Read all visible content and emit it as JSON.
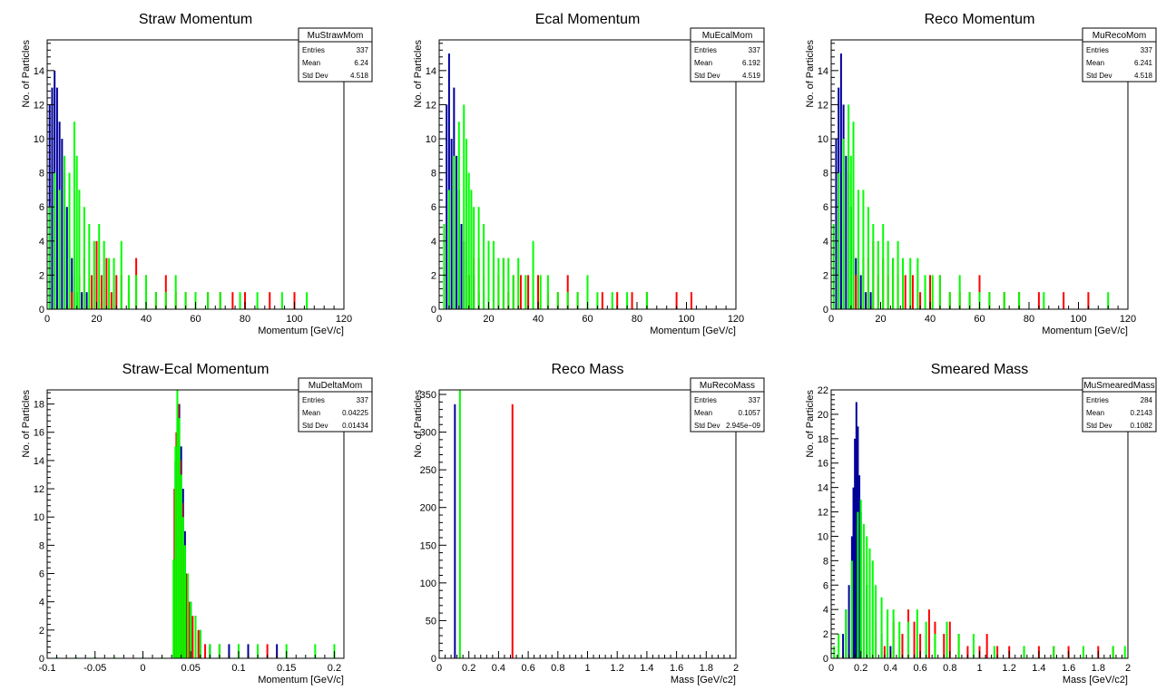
{
  "colors": {
    "blue": "#000099",
    "red": "#ff0000",
    "green": "#00ff00",
    "frame": "#000000"
  },
  "stats_labels": {
    "entries": "Entries",
    "mean": "Mean",
    "stddev": "Std Dev"
  },
  "chart_data": [
    {
      "type": "bar",
      "title": "Straw Momentum",
      "xlabel": "Momentum [GeV/c]",
      "ylabel": "No. of Particles",
      "xlim": [
        0,
        120
      ],
      "ylim": [
        0,
        15.8
      ],
      "xticks": [
        0,
        20,
        40,
        60,
        80,
        100,
        120
      ],
      "yticks": [
        0,
        2,
        4,
        6,
        8,
        10,
        12,
        14
      ],
      "xticklabels": [
        "0",
        "20",
        "40",
        "60",
        "80",
        "100",
        "120"
      ],
      "yticklabels": [
        "0",
        "2",
        "4",
        "6",
        "8",
        "10",
        "12",
        "14"
      ],
      "stats": {
        "name": "MuStrawMom",
        "entries": "337",
        "mean": "6.24",
        "stddev": "4.518"
      },
      "series": [
        {
          "color": "blue",
          "x": [
            1,
            2,
            3,
            4,
            5,
            6,
            7,
            8,
            9,
            10,
            11,
            12,
            14,
            16
          ],
          "values": [
            12,
            13,
            14,
            13,
            11,
            10,
            8,
            6,
            4,
            3,
            2,
            1,
            1,
            1
          ]
        },
        {
          "color": "red",
          "x": [
            10,
            13,
            15,
            18,
            20,
            22,
            24,
            26,
            28,
            30,
            33,
            36,
            40,
            44,
            48,
            52,
            56,
            60,
            65,
            70,
            75,
            80,
            90,
            100
          ],
          "values": [
            1,
            2,
            3,
            2,
            4,
            2,
            3,
            1,
            2,
            2,
            1,
            3,
            2,
            1,
            2,
            1,
            1,
            1,
            1,
            1,
            1,
            1,
            1,
            1
          ]
        },
        {
          "color": "green",
          "x": [
            1,
            3,
            5,
            7,
            9,
            11,
            12,
            13,
            15,
            17,
            19,
            21,
            23,
            25,
            27,
            30,
            33,
            36,
            40,
            44,
            48,
            52,
            56,
            60,
            65,
            70,
            78,
            85,
            95,
            105
          ],
          "values": [
            6,
            8,
            7,
            9,
            8,
            11,
            9,
            7,
            6,
            5,
            4,
            5,
            4,
            3,
            3,
            4,
            2,
            2,
            2,
            1,
            1,
            2,
            1,
            1,
            1,
            1,
            1,
            1,
            1,
            1
          ]
        }
      ]
    },
    {
      "type": "bar",
      "title": "Ecal Momentum",
      "xlabel": "Momentum [GeV/c]",
      "ylabel": "No. of Particles",
      "xlim": [
        0,
        120
      ],
      "ylim": [
        0,
        15.8
      ],
      "xticks": [
        0,
        20,
        40,
        60,
        80,
        100,
        120
      ],
      "yticks": [
        0,
        2,
        4,
        6,
        8,
        10,
        12,
        14
      ],
      "xticklabels": [
        "0",
        "20",
        "40",
        "60",
        "80",
        "100",
        "120"
      ],
      "yticklabels": [
        "0",
        "2",
        "4",
        "6",
        "8",
        "10",
        "12",
        "14"
      ],
      "stats": {
        "name": "MuEcalMom",
        "entries": "337",
        "mean": "6.192",
        "stddev": "4.519"
      },
      "series": [
        {
          "color": "blue",
          "x": [
            3,
            4,
            5,
            6,
            7,
            8,
            9,
            10,
            11,
            12,
            14,
            16,
            18
          ],
          "values": [
            12,
            15,
            10,
            13,
            9,
            7,
            5,
            4,
            3,
            2,
            2,
            1,
            1
          ]
        },
        {
          "color": "red",
          "x": [
            12,
            14,
            16,
            18,
            20,
            22,
            24,
            26,
            28,
            30,
            33,
            36,
            40,
            44,
            48,
            52,
            56,
            60,
            66,
            72,
            78,
            84,
            96,
            102
          ],
          "values": [
            2,
            3,
            3,
            2,
            4,
            3,
            2,
            3,
            1,
            2,
            2,
            2,
            2,
            1,
            1,
            2,
            1,
            1,
            1,
            1,
            1,
            1,
            1,
            1
          ]
        },
        {
          "color": "green",
          "x": [
            2,
            4,
            6,
            8,
            10,
            11,
            12,
            13,
            14,
            16,
            18,
            20,
            22,
            24,
            26,
            28,
            30,
            32,
            35,
            38,
            41,
            44,
            48,
            52,
            56,
            60,
            64,
            70,
            76,
            84
          ],
          "values": [
            5,
            7,
            9,
            11,
            12,
            10,
            8,
            7,
            6,
            6,
            5,
            4,
            4,
            3,
            3,
            3,
            2,
            3,
            2,
            4,
            2,
            2,
            1,
            1,
            1,
            2,
            1,
            1,
            1,
            1
          ]
        }
      ]
    },
    {
      "type": "bar",
      "title": "Reco Momentum",
      "xlabel": "Momentum [GeV/c]",
      "ylabel": "No. of Particles",
      "xlim": [
        0,
        120
      ],
      "ylim": [
        0,
        15.8
      ],
      "xticks": [
        0,
        20,
        40,
        60,
        80,
        100,
        120
      ],
      "yticks": [
        0,
        2,
        4,
        6,
        8,
        10,
        12,
        14
      ],
      "xticklabels": [
        "0",
        "20",
        "40",
        "60",
        "80",
        "100",
        "120"
      ],
      "yticklabels": [
        "0",
        "2",
        "4",
        "6",
        "8",
        "10",
        "12",
        "14"
      ],
      "stats": {
        "name": "MuRecoMom",
        "entries": "337",
        "mean": "6.241",
        "stddev": "4.518"
      },
      "series": [
        {
          "color": "blue",
          "x": [
            2,
            3,
            4,
            5,
            6,
            7,
            8,
            9,
            10,
            11,
            12,
            14,
            16
          ],
          "values": [
            10,
            13,
            15,
            12,
            9,
            8,
            6,
            4,
            3,
            2,
            2,
            1,
            1
          ]
        },
        {
          "color": "red",
          "x": [
            10,
            13,
            15,
            17,
            19,
            21,
            23,
            25,
            27,
            30,
            33,
            36,
            40,
            44,
            48,
            52,
            56,
            60,
            64,
            70,
            76,
            84,
            94,
            104
          ],
          "values": [
            2,
            3,
            3,
            4,
            2,
            3,
            2,
            3,
            2,
            2,
            2,
            1,
            2,
            2,
            1,
            1,
            1,
            2,
            1,
            1,
            1,
            1,
            1,
            1
          ]
        },
        {
          "color": "green",
          "x": [
            1,
            3,
            5,
            7,
            8,
            9,
            11,
            13,
            15,
            17,
            19,
            21,
            23,
            25,
            27,
            29,
            32,
            35,
            38,
            41,
            44,
            48,
            52,
            56,
            60,
            64,
            70,
            76,
            86,
            112
          ],
          "values": [
            5,
            8,
            10,
            12,
            9,
            11,
            7,
            7,
            6,
            5,
            4,
            5,
            4,
            3,
            4,
            3,
            3,
            3,
            2,
            2,
            2,
            1,
            2,
            1,
            1,
            1,
            1,
            1,
            1,
            1
          ]
        }
      ]
    },
    {
      "type": "bar",
      "title": "Straw-Ecal Momentum",
      "xlabel": "Momentum [GeV/c]",
      "ylabel": "No. of Particles",
      "xlim": [
        -0.1,
        0.21
      ],
      "ylim": [
        0,
        19
      ],
      "xticks": [
        -0.1,
        -0.05,
        0,
        0.05,
        0.1,
        0.15,
        0.2
      ],
      "yticks": [
        0,
        2,
        4,
        6,
        8,
        10,
        12,
        14,
        16,
        18
      ],
      "xticklabels": [
        "-0.1",
        "-0.05",
        "0",
        "0.05",
        "0.1",
        "0.15",
        "0.2"
      ],
      "yticklabels": [
        "0",
        "2",
        "4",
        "6",
        "8",
        "10",
        "12",
        "14",
        "16",
        "18"
      ],
      "stats": {
        "name": "MuDeltaMom",
        "entries": "337",
        "mean": "0.04225",
        "stddev": "0.01434"
      },
      "series": [
        {
          "color": "blue",
          "x": [
            0.034,
            0.036,
            0.038,
            0.04,
            0.042,
            0.044,
            0.046,
            0.05,
            0.055,
            0.06,
            0.07,
            0.09,
            0.11,
            0.14
          ],
          "values": [
            14,
            17,
            18,
            15,
            12,
            9,
            6,
            4,
            3,
            2,
            1,
            1,
            1,
            1
          ]
        },
        {
          "color": "red",
          "x": [
            0.033,
            0.035,
            0.037,
            0.039,
            0.041,
            0.043,
            0.045,
            0.048,
            0.052,
            0.058,
            0.065,
            0.08,
            0.1,
            0.13
          ],
          "values": [
            12,
            16,
            18,
            14,
            11,
            8,
            6,
            4,
            3,
            2,
            1,
            1,
            1,
            1
          ]
        },
        {
          "color": "green",
          "x": [
            -0.09,
            -0.07,
            -0.05,
            -0.03,
            0.0,
            0.02,
            0.032,
            0.034,
            0.036,
            0.038,
            0.04,
            0.042,
            0.044,
            0.047,
            0.05,
            0.055,
            0.06,
            0.07,
            0.08,
            0.1,
            0.12,
            0.15,
            0.18,
            0.2
          ],
          "values": [
            0,
            0,
            0,
            0,
            0,
            0,
            7,
            15,
            19,
            17,
            13,
            10,
            8,
            6,
            4,
            3,
            2,
            1,
            1,
            1,
            1,
            1,
            1,
            1
          ]
        }
      ]
    },
    {
      "type": "bar",
      "title": "Reco Mass",
      "xlabel": "Mass [GeV/c2]",
      "ylabel": "No. of Particles",
      "xlim": [
        0,
        2
      ],
      "ylim": [
        0,
        356
      ],
      "xticks": [
        0,
        0.2,
        0.4,
        0.6,
        0.8,
        1,
        1.2,
        1.4,
        1.6,
        1.8,
        2
      ],
      "yticks": [
        0,
        50,
        100,
        150,
        200,
        250,
        300,
        350
      ],
      "xticklabels": [
        "0",
        "0.2",
        "0.4",
        "0.6",
        "0.8",
        "1",
        "1.2",
        "1.4",
        "1.6",
        "1.8",
        "2"
      ],
      "yticklabels": [
        "0",
        "50",
        "100",
        "150",
        "200",
        "250",
        "300",
        "350"
      ],
      "stats": {
        "name": "MuRecoMass",
        "entries": "337",
        "mean": "0.1057",
        "stddev": "2.945e−09"
      },
      "series": [
        {
          "color": "blue",
          "x": [
            0.106
          ],
          "values": [
            337
          ]
        },
        {
          "color": "green",
          "x": [
            0.14
          ],
          "values": [
            356
          ]
        },
        {
          "color": "red",
          "x": [
            0.494
          ],
          "values": [
            337
          ]
        }
      ]
    },
    {
      "type": "bar",
      "title": "Smeared Mass",
      "xlabel": "Mass [GeV/c2]",
      "ylabel": "No. of Particles",
      "xlim": [
        0,
        2
      ],
      "ylim": [
        0,
        22
      ],
      "xticks": [
        0,
        0.2,
        0.4,
        0.6,
        0.8,
        1,
        1.2,
        1.4,
        1.6,
        1.8,
        2
      ],
      "yticks": [
        0,
        2,
        4,
        6,
        8,
        10,
        12,
        14,
        16,
        18,
        20,
        22
      ],
      "xticklabels": [
        "0",
        "0.2",
        "0.4",
        "0.6",
        "0.8",
        "1",
        "1.2",
        "1.4",
        "1.6",
        "1.8",
        "2"
      ],
      "yticklabels": [
        "0",
        "2",
        "4",
        "6",
        "8",
        "10",
        "12",
        "14",
        "16",
        "18",
        "20",
        "22"
      ],
      "stats": {
        "name": "MuSmearedMass",
        "entries": "284",
        "mean": "0.2143",
        "stddev": "0.1082"
      },
      "series": [
        {
          "color": "blue",
          "x": [
            0.08,
            0.1,
            0.12,
            0.14,
            0.15,
            0.16,
            0.17,
            0.18,
            0.19,
            0.2,
            0.22,
            0.24,
            0.26,
            0.3,
            0.34,
            0.4
          ],
          "values": [
            2,
            4,
            6,
            10,
            14,
            18,
            21,
            19,
            15,
            12,
            8,
            6,
            4,
            3,
            2,
            1
          ]
        },
        {
          "color": "red",
          "x": [
            0.3,
            0.36,
            0.42,
            0.48,
            0.52,
            0.56,
            0.6,
            0.66,
            0.7,
            0.76,
            0.8,
            0.86,
            0.92,
            1.0,
            1.05,
            1.12,
            1.2,
            1.3,
            1.4,
            1.5,
            1.6,
            1.7,
            1.8,
            1.9
          ],
          "values": [
            2,
            1,
            3,
            2,
            4,
            3,
            2,
            4,
            3,
            2,
            3,
            2,
            1,
            1,
            2,
            1,
            1,
            1,
            1,
            1,
            1,
            1,
            1,
            1
          ]
        },
        {
          "color": "green",
          "x": [
            0.02,
            0.05,
            0.1,
            0.14,
            0.18,
            0.2,
            0.22,
            0.24,
            0.26,
            0.28,
            0.3,
            0.34,
            0.38,
            0.42,
            0.46,
            0.52,
            0.58,
            0.64,
            0.7,
            0.78,
            0.86,
            0.96,
            1.1,
            1.3,
            1.5,
            1.7,
            1.9,
            1.98
          ],
          "values": [
            1,
            2,
            4,
            8,
            12,
            13,
            11,
            10,
            9,
            8,
            6,
            5,
            4,
            4,
            3,
            3,
            4,
            3,
            2,
            3,
            2,
            2,
            1,
            1,
            1,
            1,
            1,
            1
          ]
        }
      ]
    }
  ]
}
